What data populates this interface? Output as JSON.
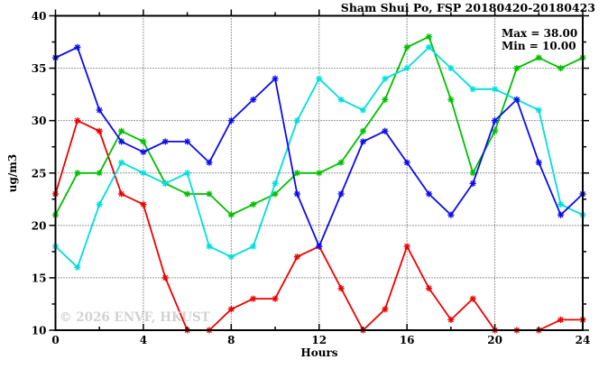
{
  "watermark": "© 2026 ENVF, HKUST",
  "chart_data": {
    "type": "line",
    "title": "Sham Shui Po, FSP 20180420-20180423",
    "xlabel": "Hours",
    "ylabel": "ug/m3",
    "max_label": "Max = 38.00",
    "min_label": "Min = 10.00",
    "xlim": [
      0,
      24
    ],
    "ylim": [
      10,
      40
    ],
    "x_major_ticks": [
      0,
      4,
      8,
      12,
      16,
      20,
      24
    ],
    "x_minor_step": 2,
    "y_major_ticks": [
      10,
      15,
      20,
      25,
      30,
      35,
      40
    ],
    "y_minor_step": 2.5,
    "grid": true,
    "legend_position": "none",
    "marker": "asterisk",
    "x": [
      0,
      1,
      2,
      3,
      4,
      5,
      6,
      7,
      8,
      9,
      10,
      11,
      12,
      13,
      14,
      15,
      16,
      17,
      18,
      19,
      20,
      21,
      22,
      23,
      24
    ],
    "series": [
      {
        "name": "red",
        "color": "#ee0000",
        "values": [
          23,
          30,
          29,
          23,
          22,
          15,
          10,
          10,
          12,
          13,
          13,
          17,
          18,
          14,
          10,
          12,
          18,
          14,
          11,
          13,
          10,
          10,
          10,
          11,
          11
        ]
      },
      {
        "name": "green",
        "color": "#00bf00",
        "values": [
          21,
          25,
          25,
          29,
          28,
          24,
          23,
          23,
          21,
          22,
          23,
          25,
          25,
          26,
          29,
          32,
          37,
          38,
          32,
          25,
          29,
          35,
          36,
          35,
          36
        ]
      },
      {
        "name": "cyan",
        "color": "#00dede",
        "values": [
          18,
          16,
          22,
          26,
          25,
          24,
          25,
          18,
          17,
          18,
          24,
          30,
          34,
          32,
          31,
          34,
          35,
          37,
          35,
          33,
          33,
          32,
          31,
          22,
          21
        ]
      },
      {
        "name": "blue",
        "color": "#0b0bee",
        "values": [
          36,
          37,
          31,
          28,
          27,
          28,
          28,
          26,
          30,
          32,
          34,
          23,
          18,
          23,
          28,
          29,
          26,
          23,
          21,
          24,
          30,
          32,
          26,
          21,
          23
        ]
      }
    ]
  }
}
